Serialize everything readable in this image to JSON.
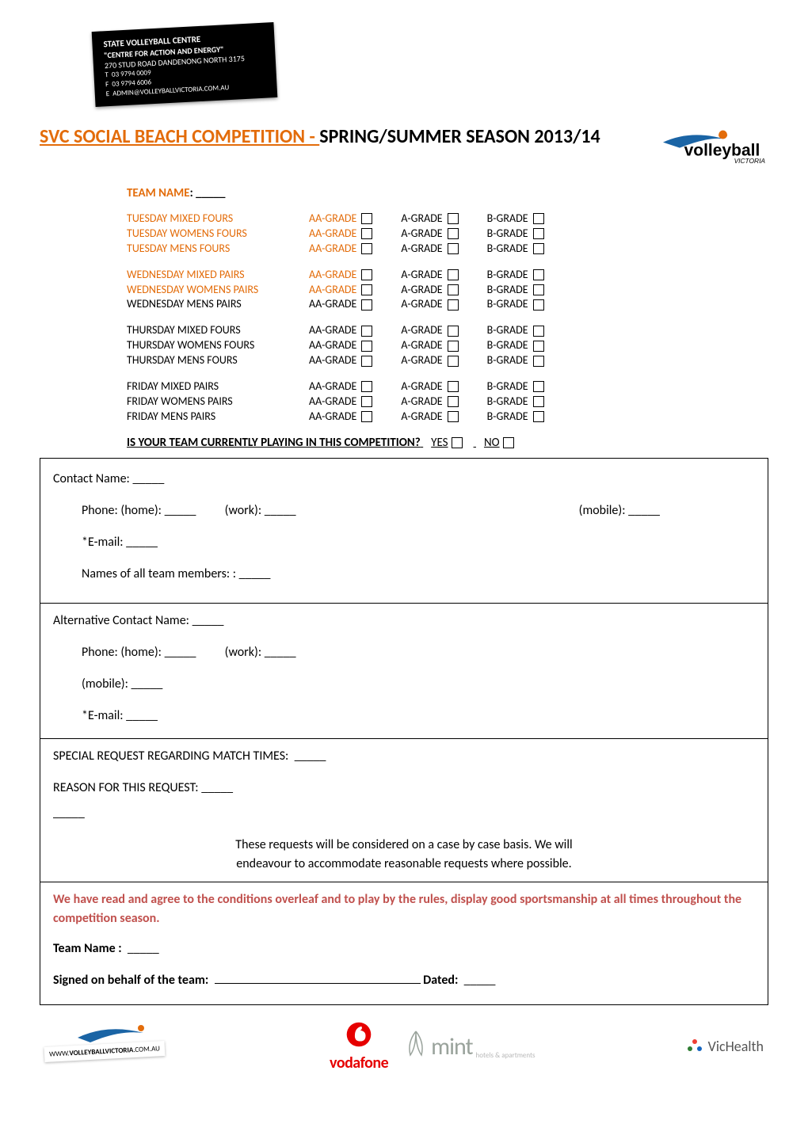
{
  "header": {
    "org_name": "STATE VOLLEYBALL CENTRE",
    "tagline": "\"CENTRE FOR ACTION AND ENERGY\"",
    "address": "270 STUD ROAD DANDENONG NORTH 3175",
    "phone_label": "T",
    "phone": "03 9794 0009",
    "fax_label": "F",
    "fax": "03 9794 6006",
    "email_label": "E",
    "email": "ADMIN@VOLLEYBALLVICTORIA.COM.AU"
  },
  "title": {
    "orange_part": "SVC SOCIAL BEACH COMPETITION - ",
    "black_part": "SPRING/SUMMER SEASON 2013/14"
  },
  "logo_main": {
    "text_bold": "volleyball",
    "text_sub": "VICTORIA",
    "swoosh_color": "#1a64a5",
    "ball_color": "#e36c0a"
  },
  "team_name_label": "TEAM NAME",
  "blank_line": "_____",
  "grade_labels": {
    "aa": "AA-GRADE",
    "a": "A-GRADE",
    "b": "B-GRADE"
  },
  "grade_groups": [
    {
      "highlight": true,
      "rows": [
        {
          "cat": "TUESDAY MIXED FOURS"
        },
        {
          "cat": "TUESDAY WOMENS FOURS"
        },
        {
          "cat": "TUESDAY MENS FOURS"
        }
      ]
    },
    {
      "highlight": true,
      "highlight_partial": [
        "WEDNESDAY MIXED PAIRS",
        "WEDNESDAY WOMENS PAIRS"
      ],
      "rows": [
        {
          "cat": "WEDNESDAY MIXED PAIRS",
          "hl": true
        },
        {
          "cat": "WEDNESDAY WOMENS PAIRS",
          "hl": true
        },
        {
          "cat": "WEDNESDAY MENS PAIRS",
          "hl": false
        }
      ]
    },
    {
      "highlight": false,
      "rows": [
        {
          "cat": "THURSDAY MIXED FOURS"
        },
        {
          "cat": "THURSDAY WOMENS FOURS"
        },
        {
          "cat": "THURSDAY MENS FOURS"
        }
      ]
    },
    {
      "highlight": false,
      "rows": [
        {
          "cat": "FRIDAY MIXED PAIRS"
        },
        {
          "cat": "FRIDAY WOMENS PAIRS"
        },
        {
          "cat": "FRIDAY MENS PAIRS"
        }
      ]
    }
  ],
  "question": {
    "text": "IS YOUR TEAM CURRENTLY PLAYING IN THIS COMPETITION?",
    "yes": "YES",
    "no": "NO"
  },
  "form": {
    "contact_name": "Contact Name:",
    "phone_home": "Phone: (home):",
    "phone_work": "(work):",
    "phone_mobile": "(mobile):",
    "email": "*E-mail:",
    "team_members": "Names of all team members: :",
    "alt_contact": "Alternative Contact Name:",
    "special_request": "SPECIAL REQUEST REGARDING MATCH TIMES:",
    "reason": "REASON FOR THIS REQUEST:",
    "note_line1": "These requests will be considered on a case by case basis.  We will",
    "note_line2": "endeavour to accommodate reasonable requests where possible.",
    "agree": "We have read and agree to the conditions overleaf and to play by the rules, display good sportsmanship at all times throughout the competition season.",
    "team_name_label2": "Team Name :",
    "signed_label": "Signed on behalf of the team:",
    "dated_label": "Dated:"
  },
  "footer": {
    "url_prefix": "WWW.",
    "url_bold": "VOLLEYBALLVICTORIA",
    "url_suffix": ".COM.AU",
    "vodafone": "vodafone",
    "mint": "mint",
    "mint_sub": "hotels & apartments",
    "vichealth": "VicHealth"
  },
  "colors": {
    "orange": "#e36c0a",
    "red_text": "#c0504d",
    "logo_blue": "#1a64a5",
    "vodafone_red": "#e60000",
    "mint_grey": "#9aa39c",
    "vichealth_grey": "#555555"
  }
}
